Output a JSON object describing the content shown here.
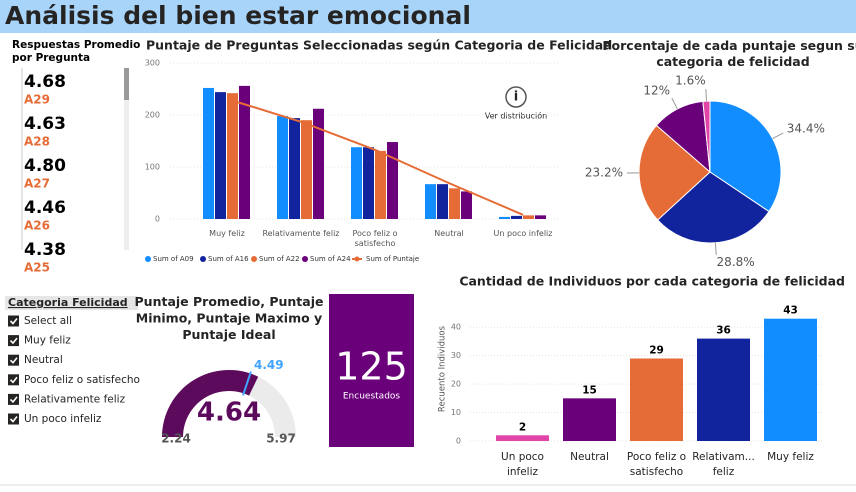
{
  "header": {
    "title": "Análisis del bien estar emocional"
  },
  "cards": {
    "title": "Respuestas Promedio por Pregunta",
    "items": [
      {
        "value": "4.68",
        "label": "A29"
      },
      {
        "value": "4.63",
        "label": "A28"
      },
      {
        "value": "4.80",
        "label": "A27"
      },
      {
        "value": "4.46",
        "label": "A26"
      },
      {
        "value": "4.38",
        "label": "A25"
      }
    ]
  },
  "slicer": {
    "title": "Categoria Felicidad",
    "items": [
      "Select all",
      "Muy feliz",
      "Neutral",
      "Poco feliz o satisfecho",
      "Relativamente feliz",
      "Un poco infeliz"
    ]
  },
  "visual_action": "Ver distribución",
  "chart_data": [
    {
      "type": "combo",
      "title": "Puntaje de Preguntas Seleccionadas según Categoria de Felicidad",
      "categories": [
        "Muy feliz",
        "Relativamente feliz",
        "Poco feliz o satisfecho",
        "Neutral",
        "Un poco infeliz"
      ],
      "series": [
        {
          "name": "Sum of A09",
          "color": "#118dff",
          "values": [
            252,
            198,
            138,
            67,
            4
          ]
        },
        {
          "name": "Sum of A16",
          "color": "#12239e",
          "values": [
            244,
            194,
            138,
            67,
            6
          ]
        },
        {
          "name": "Sum of A22",
          "color": "#e66c37",
          "values": [
            242,
            190,
            131,
            59,
            7
          ]
        },
        {
          "name": "Sum of A24",
          "color": "#6b007b",
          "values": [
            256,
            212,
            148,
            53,
            7
          ]
        },
        {
          "name": "Sum of Puntaje",
          "color": "#e66c37",
          "kind": "line",
          "values": [
            231,
            187,
            133,
            69,
            8
          ]
        }
      ],
      "ylim": [
        0,
        300
      ],
      "yticks": [
        0,
        100,
        200,
        300
      ],
      "grid": true
    },
    {
      "type": "pie",
      "title": "Porcentaje de cada puntaje segun su categoria de felicidad",
      "values": [
        34.4,
        28.8,
        23.2,
        12,
        1.6
      ],
      "value_labels": [
        "34.4%",
        "28.8%",
        "23.2%",
        "12%",
        "1.6%"
      ],
      "colors": [
        "#118dff",
        "#12239e",
        "#e66c37",
        "#6b007b",
        "#e044a7"
      ]
    },
    {
      "type": "gauge",
      "title": "Puntaje Promedio, Puntaje Minimo, Puntaje Maximo y Puntaje Ideal",
      "value": 4.64,
      "min": 2.24,
      "max": 5.97,
      "target": 4.49,
      "color": "#5c0a5c",
      "target_color": "#41a4ff"
    },
    {
      "type": "card",
      "value": 125,
      "label": "Encuestados",
      "color": "#6b007b"
    },
    {
      "type": "bar",
      "title": "Cantidad de Individuos por cada categoria de felicidad",
      "y_label": "Recuento Individuos",
      "categories": [
        "Un poco infeliz",
        "Neutral",
        "Poco feliz o satisfecho",
        "Relativam... feliz",
        "Muy feliz"
      ],
      "values": [
        2,
        15,
        29,
        36,
        43
      ],
      "colors": [
        "#e044a7",
        "#6b007b",
        "#e66c37",
        "#12239e",
        "#118dff"
      ],
      "ylim": [
        0,
        45
      ],
      "yticks": [
        0,
        10,
        20,
        30,
        40
      ],
      "grid": true
    }
  ]
}
